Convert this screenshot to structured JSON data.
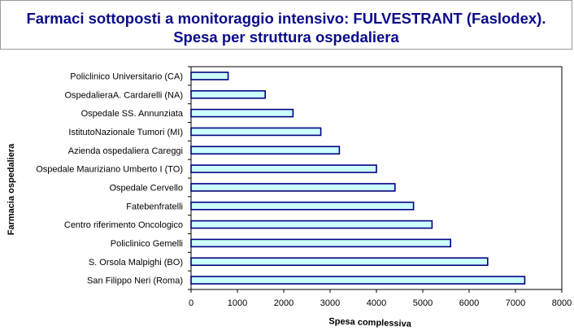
{
  "title": {
    "line1": "Farmaci sottoposti a monitoraggio intensivo: FULVESTRANT (Faslodex).",
    "line2": "Spesa per struttura ospedaliera"
  },
  "chart_data": {
    "type": "bar",
    "orientation": "horizontal",
    "categories": [
      "Policlinico Universitario (CA)",
      "OspedalieraA. Cardarelli (NA)",
      "Ospedale  SS. Annunziata",
      "IstitutoNazionale Tumori (MI)",
      "Azienda ospedaliera Careggi",
      "Ospedale Mauriziano Umberto I (TO)",
      "Ospedale Cervello",
      "Fatebenfratelli",
      "Centro riferimento Oncologico",
      "Policlinico Gemelli",
      "S. Orsola Malpighi (BO)",
      "San Filippo Neri (Roma)"
    ],
    "values": [
      800,
      1600,
      2200,
      2800,
      3200,
      4000,
      4400,
      4800,
      5200,
      5600,
      6400,
      7200
    ],
    "xlabel": "Spesa complessiva",
    "ylabel": "Farmacia ospedaliera",
    "xlim": [
      0,
      8000
    ],
    "xticks": [
      "0",
      "1000",
      "2000",
      "3000",
      "4000",
      "5000",
      "6000",
      "7000",
      "8000"
    ],
    "grid": false,
    "legend": "none",
    "colors": {
      "bar_fill": "#ccffff",
      "bar_stroke": "#000080",
      "title": "#0b0b8a"
    }
  }
}
